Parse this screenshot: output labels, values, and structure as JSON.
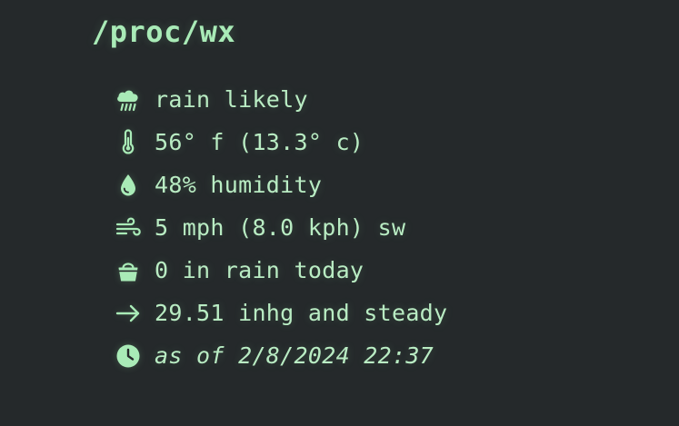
{
  "header": {
    "title": "/proc/wx"
  },
  "colors": {
    "background": "#25292b",
    "accent": "#a9ebb7",
    "text": "#b9ecc3"
  },
  "weather": {
    "rows": [
      {
        "icon": "rain-cloud-icon",
        "text": "rain likely"
      },
      {
        "icon": "thermometer-icon",
        "text": "56° f (13.3° c)"
      },
      {
        "icon": "droplet-icon",
        "text": "48% humidity"
      },
      {
        "icon": "wind-icon",
        "text": "5 mph (8.0 kph) sw"
      },
      {
        "icon": "bucket-icon",
        "text": "0 in rain today"
      },
      {
        "icon": "arrow-right-icon",
        "text": "29.51 inhg and steady"
      },
      {
        "icon": "clock-icon",
        "text": "as of 2/8/2024 22:37"
      }
    ]
  }
}
